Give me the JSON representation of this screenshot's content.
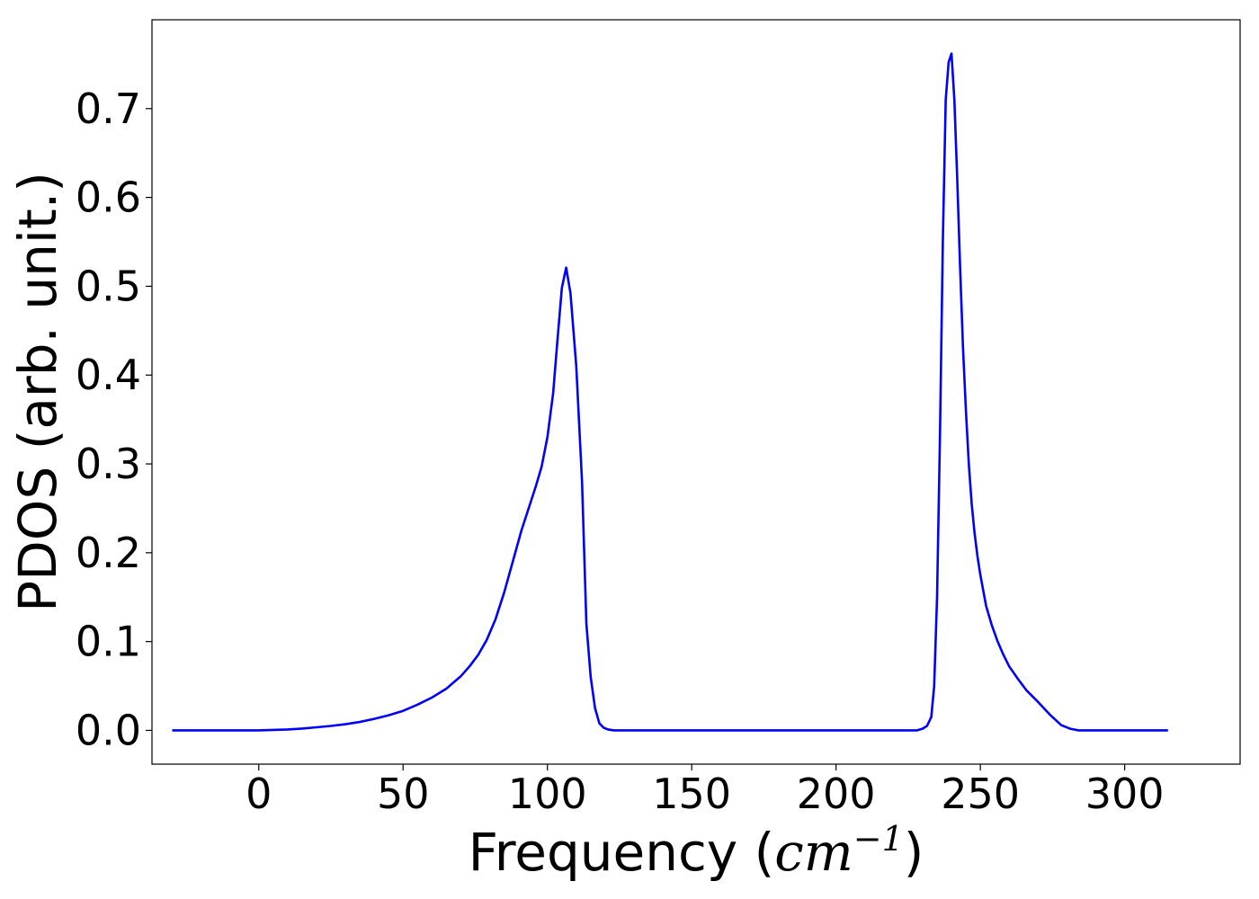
{
  "chart_data": {
    "type": "line",
    "title": "",
    "xlabel": "Frequency",
    "xlabel_unit_base": "cm",
    "xlabel_unit_exp": "−1",
    "ylabel": "PDOS (arb. unit.)",
    "xlim": [
      -37,
      340
    ],
    "ylim": [
      -0.038,
      0.8
    ],
    "grid": false,
    "legend": "none",
    "x_ticks": [
      0,
      50,
      100,
      150,
      200,
      250,
      300
    ],
    "x_tick_labels": [
      "0",
      "50",
      "100",
      "150",
      "200",
      "250",
      "300"
    ],
    "y_ticks": [
      0.0,
      0.1,
      0.2,
      0.3,
      0.4,
      0.5,
      0.6,
      0.7
    ],
    "y_tick_labels": [
      "0.0",
      "0.1",
      "0.2",
      "0.3",
      "0.4",
      "0.5",
      "0.6",
      "0.7"
    ],
    "series": [
      {
        "color": "#0000ff",
        "x": [
          -30,
          -20,
          -10,
          0,
          5,
          10,
          15,
          20,
          25,
          30,
          35,
          40,
          45,
          50,
          55,
          60,
          65,
          70,
          73,
          76,
          79,
          82,
          85,
          88,
          91,
          94,
          96,
          98,
          100,
          102,
          103.5,
          105,
          106.5,
          108,
          110,
          112,
          113.5,
          115,
          116.5,
          118,
          119.5,
          121,
          123,
          126,
          130,
          140,
          160,
          180,
          200,
          220,
          228,
          230,
          231.5,
          233,
          234,
          235,
          236,
          237,
          238,
          239,
          240,
          241,
          242,
          243,
          244,
          245,
          246,
          247,
          248,
          249,
          250,
          252,
          254,
          256,
          258,
          260,
          263,
          266,
          270,
          274,
          278,
          281,
          284,
          286,
          288,
          290,
          292,
          295,
          300,
          310,
          315
        ],
        "y": [
          0.0,
          0.0,
          0.0,
          0.0,
          0.0005,
          0.001,
          0.002,
          0.0035,
          0.005,
          0.007,
          0.0095,
          0.013,
          0.017,
          0.022,
          0.029,
          0.037,
          0.047,
          0.061,
          0.072,
          0.085,
          0.102,
          0.125,
          0.155,
          0.19,
          0.225,
          0.255,
          0.275,
          0.297,
          0.33,
          0.38,
          0.44,
          0.498,
          0.521,
          0.492,
          0.41,
          0.28,
          0.12,
          0.06,
          0.025,
          0.008,
          0.003,
          0.001,
          0.0,
          0.0,
          0.0,
          0.0,
          0.0,
          0.0,
          0.0,
          0.0,
          0.0,
          0.002,
          0.005,
          0.015,
          0.05,
          0.15,
          0.33,
          0.55,
          0.71,
          0.752,
          0.762,
          0.71,
          0.62,
          0.52,
          0.43,
          0.36,
          0.3,
          0.255,
          0.222,
          0.196,
          0.175,
          0.14,
          0.118,
          0.1,
          0.085,
          0.072,
          0.058,
          0.045,
          0.032,
          0.018,
          0.006,
          0.002,
          0.0,
          0.0,
          0.0,
          0.0,
          0.0,
          0.0,
          0.0,
          0.0,
          0.0
        ]
      }
    ]
  }
}
